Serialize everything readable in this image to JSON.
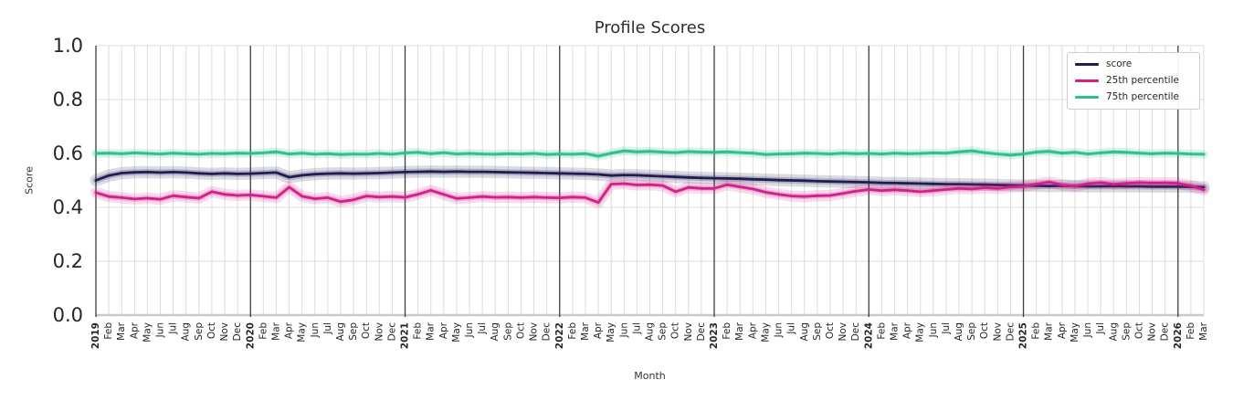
{
  "figure": {
    "title": "Profile Scores",
    "xlabel": "Month",
    "ylabel": "Score"
  },
  "legend": {
    "position": "upper right",
    "items": [
      {
        "label": "score",
        "color": "#1f1d52"
      },
      {
        "label": "25th percentile",
        "color": "#d1208a"
      },
      {
        "label": "75th percentile",
        "color": "#2dbf8d"
      }
    ]
  },
  "colors": {
    "grid_minor": "#dcdcdc",
    "grid_year": "#3d3d3d",
    "baseline": "#c8c8c8",
    "tick_text": "#262626",
    "score": "#1f1d52",
    "p25": "#d1208a",
    "p75": "#2dbf8d"
  },
  "chart_data": {
    "type": "line",
    "title": "Profile Scores",
    "xlabel": "Month",
    "ylabel": "Score",
    "ylim": [
      0.0,
      1.0
    ],
    "yticks": [
      0.0,
      0.2,
      0.4,
      0.6,
      0.8,
      1.0
    ],
    "grid": true,
    "legend_position": "upper right",
    "x_tick_labels": [
      "2019",
      "Feb",
      "Mar",
      "Apr",
      "May",
      "Jun",
      "Jul",
      "Aug",
      "Sep",
      "Oct",
      "Nov",
      "Dec",
      "2020",
      "Feb",
      "Mar",
      "Apr",
      "May",
      "Jun",
      "Jul",
      "Aug",
      "Sep",
      "Oct",
      "Nov",
      "Dec",
      "2021",
      "Feb",
      "Mar",
      "Apr",
      "May",
      "Jun",
      "Jul",
      "Aug",
      "Sep",
      "Oct",
      "Nov",
      "Dec",
      "2022",
      "Feb",
      "Mar",
      "Apr",
      "May",
      "Jun",
      "Jul",
      "Aug",
      "Sep",
      "Oct",
      "Nov",
      "Dec",
      "2023",
      "Feb",
      "Mar",
      "Apr",
      "May",
      "Jun",
      "Jul",
      "Aug",
      "Sep",
      "Oct",
      "Nov",
      "Dec",
      "2024",
      "Feb",
      "Mar",
      "Apr",
      "May",
      "Jun",
      "Jul",
      "Aug",
      "Sep",
      "Oct",
      "Nov",
      "Dec",
      "2025",
      "Feb",
      "Mar",
      "Apr",
      "May",
      "Jun",
      "Jul",
      "Aug",
      "Sep",
      "Oct",
      "Nov",
      "Dec",
      "2026",
      "Feb",
      "Mar"
    ],
    "year_tick_indices": [
      0,
      12,
      24,
      36,
      48,
      60,
      72,
      84
    ],
    "series": [
      {
        "name": "score",
        "color": "#1f1d52",
        "band": 0.016,
        "values": [
          0.5,
          0.518,
          0.527,
          0.53,
          0.531,
          0.529,
          0.531,
          0.529,
          0.526,
          0.524,
          0.526,
          0.524,
          0.525,
          0.527,
          0.529,
          0.512,
          0.519,
          0.523,
          0.525,
          0.526,
          0.525,
          0.526,
          0.527,
          0.529,
          0.531,
          0.532,
          0.533,
          0.532,
          0.533,
          0.532,
          0.532,
          0.531,
          0.53,
          0.529,
          0.528,
          0.527,
          0.526,
          0.525,
          0.524,
          0.522,
          0.518,
          0.52,
          0.519,
          0.517,
          0.515,
          0.513,
          0.511,
          0.509,
          0.508,
          0.507,
          0.506,
          0.504,
          0.503,
          0.501,
          0.5,
          0.499,
          0.497,
          0.496,
          0.495,
          0.494,
          0.493,
          0.491,
          0.49,
          0.489,
          0.488,
          0.487,
          0.486,
          0.486,
          0.485,
          0.484,
          0.483,
          0.482,
          0.481,
          0.48,
          0.479,
          0.48,
          0.479,
          0.478,
          0.478,
          0.479,
          0.478,
          0.478,
          0.477,
          0.477,
          0.477,
          0.476,
          0.475
        ]
      },
      {
        "name": "25th percentile",
        "color": "#d1208a",
        "band": 0.014,
        "values": [
          0.455,
          0.44,
          0.436,
          0.431,
          0.434,
          0.43,
          0.443,
          0.438,
          0.434,
          0.458,
          0.448,
          0.444,
          0.446,
          0.441,
          0.436,
          0.475,
          0.441,
          0.432,
          0.436,
          0.421,
          0.428,
          0.442,
          0.438,
          0.44,
          0.437,
          0.448,
          0.463,
          0.448,
          0.433,
          0.436,
          0.44,
          0.437,
          0.438,
          0.436,
          0.438,
          0.436,
          0.435,
          0.438,
          0.436,
          0.418,
          0.486,
          0.488,
          0.483,
          0.484,
          0.481,
          0.458,
          0.474,
          0.47,
          0.47,
          0.484,
          0.476,
          0.468,
          0.456,
          0.448,
          0.442,
          0.44,
          0.443,
          0.444,
          0.452,
          0.46,
          0.466,
          0.462,
          0.465,
          0.462,
          0.458,
          0.462,
          0.466,
          0.47,
          0.468,
          0.473,
          0.47,
          0.475,
          0.478,
          0.486,
          0.494,
          0.483,
          0.478,
          0.488,
          0.492,
          0.486,
          0.489,
          0.492,
          0.49,
          0.491,
          0.489,
          0.48,
          0.465
        ]
      },
      {
        "name": "75th percentile",
        "color": "#2dbf8d",
        "band": 0.01,
        "values": [
          0.6,
          0.601,
          0.599,
          0.602,
          0.6,
          0.598,
          0.601,
          0.599,
          0.597,
          0.6,
          0.599,
          0.601,
          0.6,
          0.602,
          0.606,
          0.598,
          0.601,
          0.597,
          0.599,
          0.596,
          0.598,
          0.597,
          0.6,
          0.597,
          0.602,
          0.604,
          0.599,
          0.603,
          0.598,
          0.6,
          0.598,
          0.597,
          0.599,
          0.598,
          0.6,
          0.596,
          0.598,
          0.597,
          0.599,
          0.59,
          0.601,
          0.61,
          0.606,
          0.608,
          0.605,
          0.603,
          0.607,
          0.605,
          0.604,
          0.606,
          0.603,
          0.601,
          0.596,
          0.598,
          0.599,
          0.601,
          0.6,
          0.598,
          0.601,
          0.599,
          0.6,
          0.598,
          0.601,
          0.599,
          0.6,
          0.602,
          0.601,
          0.606,
          0.61,
          0.603,
          0.598,
          0.594,
          0.598,
          0.605,
          0.608,
          0.601,
          0.604,
          0.598,
          0.602,
          0.606,
          0.604,
          0.601,
          0.599,
          0.601,
          0.6,
          0.598,
          0.597
        ]
      }
    ]
  }
}
